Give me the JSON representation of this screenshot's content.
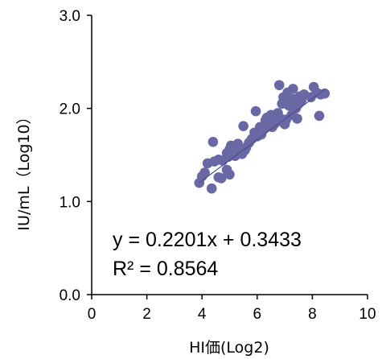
{
  "chart_data": {
    "type": "scatter",
    "xlabel": "HI価(Log2)",
    "ylabel": "IU/mL（Log10）",
    "xlim": [
      0,
      10
    ],
    "ylim": [
      0.0,
      3.0
    ],
    "x_ticks": [
      "0",
      "2",
      "4",
      "6",
      "8",
      "10"
    ],
    "y_ticks": [
      "0.0",
      "1.0",
      "2.0",
      "3.0"
    ],
    "grid": false,
    "marker_color": "#6A68A4",
    "trendline_color": "#4A4F8A",
    "trendline": {
      "slope": 0.2201,
      "intercept": 0.3433
    },
    "equation_text": "y = 0.2201x + 0.3433",
    "r2_text": "R² = 0.8564",
    "series": [
      {
        "points": [
          [
            3.9,
            1.2
          ],
          [
            4.0,
            1.27
          ],
          [
            4.1,
            1.31
          ],
          [
            4.2,
            1.41
          ],
          [
            4.35,
            1.14
          ],
          [
            4.4,
            1.64
          ],
          [
            4.45,
            1.43
          ],
          [
            4.6,
            1.26
          ],
          [
            4.6,
            1.45
          ],
          [
            4.7,
            1.25
          ],
          [
            4.75,
            1.44
          ],
          [
            4.9,
            1.34
          ],
          [
            4.9,
            1.52
          ],
          [
            4.95,
            1.48
          ],
          [
            5.0,
            1.56
          ],
          [
            5.0,
            1.29
          ],
          [
            5.05,
            1.6
          ],
          [
            5.15,
            1.55
          ],
          [
            5.2,
            1.49
          ],
          [
            5.3,
            1.62
          ],
          [
            5.35,
            1.57
          ],
          [
            5.45,
            1.51
          ],
          [
            5.5,
            1.81
          ],
          [
            5.55,
            1.55
          ],
          [
            5.6,
            1.58
          ],
          [
            5.7,
            1.63
          ],
          [
            5.8,
            1.67
          ],
          [
            5.9,
            1.74
          ],
          [
            5.95,
            1.97
          ],
          [
            6.0,
            1.7
          ],
          [
            6.1,
            1.8
          ],
          [
            6.15,
            1.72
          ],
          [
            6.25,
            1.78
          ],
          [
            6.3,
            1.87
          ],
          [
            6.35,
            1.9
          ],
          [
            6.4,
            1.83
          ],
          [
            6.5,
            1.93
          ],
          [
            6.55,
            1.8
          ],
          [
            6.6,
            1.88
          ],
          [
            6.65,
            1.84
          ],
          [
            6.7,
            1.91
          ],
          [
            6.75,
            1.95
          ],
          [
            6.8,
            2.25
          ],
          [
            6.85,
            1.89
          ],
          [
            6.9,
            2.05
          ],
          [
            6.95,
            2.12
          ],
          [
            7.0,
            1.83
          ],
          [
            7.05,
            1.88
          ],
          [
            7.1,
            2.17
          ],
          [
            7.15,
            2.03
          ],
          [
            7.2,
            2.08
          ],
          [
            7.25,
            1.93
          ],
          [
            7.3,
            2.21
          ],
          [
            7.35,
            2.1
          ],
          [
            7.4,
            2.0
          ],
          [
            7.45,
            1.89
          ],
          [
            7.5,
            2.05
          ],
          [
            7.55,
            2.13
          ],
          [
            7.6,
            2.08
          ],
          [
            7.7,
            2.15
          ],
          [
            7.95,
            2.12
          ],
          [
            8.05,
            2.23
          ],
          [
            8.15,
            2.17
          ],
          [
            8.25,
            1.92
          ],
          [
            8.3,
            2.15
          ],
          [
            8.45,
            2.16
          ]
        ]
      }
    ]
  }
}
